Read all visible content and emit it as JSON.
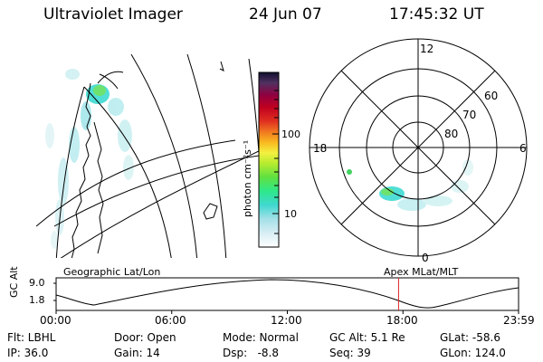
{
  "header": {
    "title": "Ultraviolet Imager",
    "date": "24 Jun 07",
    "time": "17:45:32 UT"
  },
  "colorbar": {
    "label": "photon cm⁻²s⁻¹",
    "ticks": [
      "100",
      "10"
    ]
  },
  "polar_plot": {
    "mlt_labels": {
      "top": "12",
      "left": "18",
      "right": "6",
      "bottom": "0"
    },
    "lat_labels": [
      "60",
      "70",
      "80"
    ]
  },
  "panel_labels": {
    "left": "Geographic Lat/Lon",
    "right": "Apex MLat/MLT"
  },
  "alt_plot": {
    "ylabel": "GC Alt",
    "ytick_high": "9.0",
    "ytick_low": "1.8",
    "xticks": [
      "00:00",
      "06:00",
      "12:00",
      "18:00",
      "23:59"
    ],
    "current_time_hours": 17.76
  },
  "info": {
    "flt": "Flt: LBHL",
    "ip": "IP: 36.0",
    "door": "Door: Open",
    "gain": "Gain: 14",
    "mode": "Mode: Normal",
    "dsp": "Dsp:   -8.8",
    "gcalt": "GC Alt: 5.1 Re",
    "seq": "Seq: 39",
    "glat": "GLat: -58.6",
    "glon": "GLon: 124.0"
  },
  "colors": {
    "marker": "#dd2222",
    "aurora_cyan": "#33d9d0",
    "aurora_green": "#55dd55"
  }
}
